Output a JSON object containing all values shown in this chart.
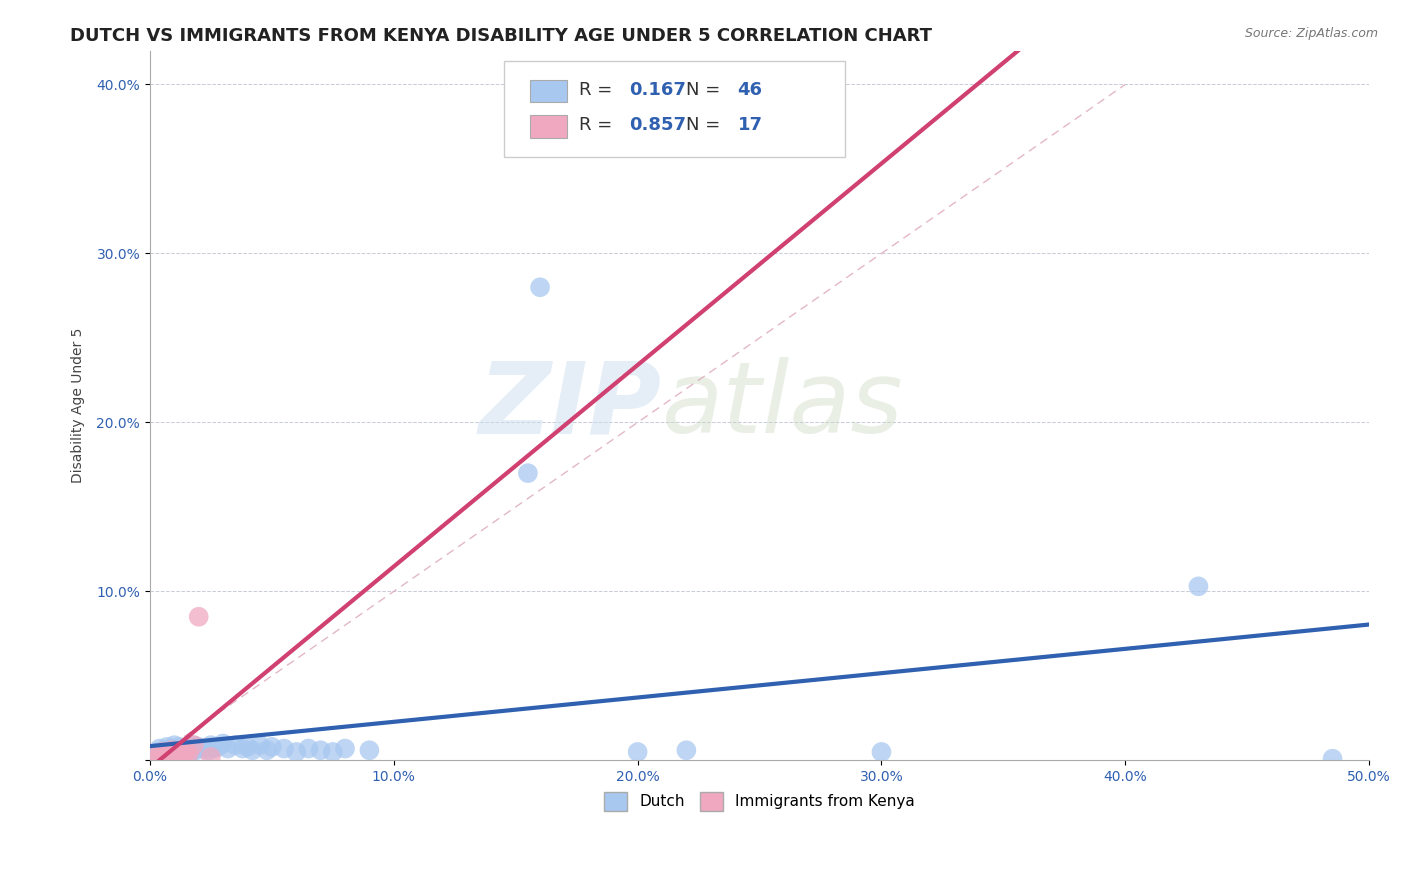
{
  "title": "DUTCH VS IMMIGRANTS FROM KENYA DISABILITY AGE UNDER 5 CORRELATION CHART",
  "source": "Source: ZipAtlas.com",
  "ylabel": "Disability Age Under 5",
  "xlim": [
    0.0,
    0.5
  ],
  "ylim": [
    0.0,
    0.42
  ],
  "xticks": [
    0.0,
    0.1,
    0.2,
    0.3,
    0.4,
    0.5
  ],
  "yticks": [
    0.0,
    0.1,
    0.2,
    0.3,
    0.4
  ],
  "xticklabels": [
    "0.0%",
    "10.0%",
    "20.0%",
    "30.0%",
    "40.0%",
    "50.0%"
  ],
  "yticklabels": [
    "",
    "10.0%",
    "20.0%",
    "30.0%",
    "40.0%"
  ],
  "dutch_R": 0.167,
  "dutch_N": 46,
  "kenya_R": 0.857,
  "kenya_N": 17,
  "dutch_color": "#a8c8f0",
  "kenya_color": "#f0a8c0",
  "dutch_line_color": "#3060b0",
  "kenya_line_color": "#d04070",
  "diagonal_color": "#c8ccd8",
  "background_color": "#ffffff",
  "dutch_points": [
    [
      0.003,
      0.005
    ],
    [
      0.004,
      0.007
    ],
    [
      0.005,
      0.004
    ],
    [
      0.006,
      0.006
    ],
    [
      0.007,
      0.008
    ],
    [
      0.008,
      0.005
    ],
    [
      0.009,
      0.007
    ],
    [
      0.01,
      0.009
    ],
    [
      0.011,
      0.006
    ],
    [
      0.012,
      0.008
    ],
    [
      0.013,
      0.005
    ],
    [
      0.014,
      0.007
    ],
    [
      0.015,
      0.006
    ],
    [
      0.016,
      0.008
    ],
    [
      0.017,
      0.005
    ],
    [
      0.018,
      0.009
    ],
    [
      0.019,
      0.006
    ],
    [
      0.02,
      0.008
    ],
    [
      0.022,
      0.007
    ],
    [
      0.024,
      0.006
    ],
    [
      0.025,
      0.009
    ],
    [
      0.026,
      0.007
    ],
    [
      0.028,
      0.008
    ],
    [
      0.03,
      0.01
    ],
    [
      0.032,
      0.007
    ],
    [
      0.035,
      0.009
    ],
    [
      0.038,
      0.007
    ],
    [
      0.04,
      0.008
    ],
    [
      0.042,
      0.006
    ],
    [
      0.045,
      0.009
    ],
    [
      0.048,
      0.006
    ],
    [
      0.05,
      0.008
    ],
    [
      0.055,
      0.007
    ],
    [
      0.06,
      0.005
    ],
    [
      0.065,
      0.007
    ],
    [
      0.07,
      0.006
    ],
    [
      0.075,
      0.005
    ],
    [
      0.08,
      0.007
    ],
    [
      0.09,
      0.006
    ],
    [
      0.155,
      0.17
    ],
    [
      0.16,
      0.28
    ],
    [
      0.2,
      0.005
    ],
    [
      0.22,
      0.006
    ],
    [
      0.3,
      0.005
    ],
    [
      0.43,
      0.103
    ],
    [
      0.485,
      0.001
    ]
  ],
  "kenya_points": [
    [
      0.003,
      0.004
    ],
    [
      0.004,
      0.003
    ],
    [
      0.005,
      0.005
    ],
    [
      0.006,
      0.004
    ],
    [
      0.007,
      0.005
    ],
    [
      0.008,
      0.003
    ],
    [
      0.009,
      0.006
    ],
    [
      0.01,
      0.004
    ],
    [
      0.011,
      0.005
    ],
    [
      0.012,
      0.003
    ],
    [
      0.013,
      0.006
    ],
    [
      0.014,
      0.004
    ],
    [
      0.015,
      0.005
    ],
    [
      0.016,
      0.004
    ],
    [
      0.018,
      0.009
    ],
    [
      0.02,
      0.085
    ],
    [
      0.025,
      0.002
    ]
  ],
  "watermark_zip": "ZIP",
  "watermark_atlas": "atlas",
  "title_fontsize": 13,
  "label_fontsize": 10,
  "tick_fontsize": 10
}
